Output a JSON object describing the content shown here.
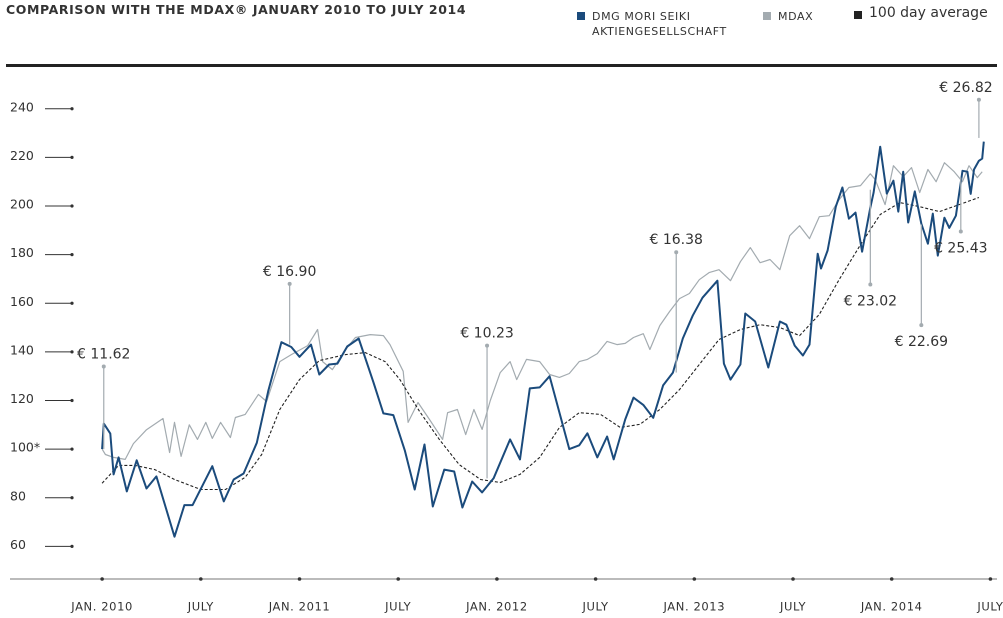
{
  "chart_data": {
    "type": "line",
    "title": "COMPARISON WITH THE MDAX® JANUARY 2010 TO JULY 2014",
    "xlim": [
      -5.6,
      54.4
    ],
    "xticks": [
      {
        "value": 0,
        "label": "JAN. 2010"
      },
      {
        "value": 6,
        "label": "JULY"
      },
      {
        "value": 12,
        "label": "JAN. 2011"
      },
      {
        "value": 18,
        "label": "JULY"
      },
      {
        "value": 24,
        "label": "JAN. 2012"
      },
      {
        "value": 30,
        "label": "JULY"
      },
      {
        "value": 36,
        "label": "JAN. 2013"
      },
      {
        "value": 42,
        "label": "JULY"
      },
      {
        "value": 48,
        "label": "JAN. 2014"
      },
      {
        "value": 54,
        "label": "JULY"
      }
    ],
    "ylim": [
      47,
      258
    ],
    "yticks": [
      60,
      80,
      {
        "value": 100,
        "label": "100*"
      },
      120,
      140,
      160,
      180,
      200,
      220,
      240
    ],
    "series": [
      {
        "name": "DMG MORI SEIKI AKTIENGESELLSCHAFT",
        "color": "#1b4b7c",
        "dashed": false,
        "x": [
          0,
          0.1,
          0.5,
          0.7,
          1.0,
          1.5,
          2.1,
          2.7,
          3.3,
          4.4,
          5.0,
          5.5,
          6.7,
          7.4,
          8.0,
          8.6,
          9.4,
          10.1,
          10.9,
          11.5,
          12.0,
          12.7,
          13.2,
          13.8,
          14.3,
          14.9,
          15.6,
          16.5,
          17.1,
          17.7,
          18.4,
          19.0,
          19.6,
          20.1,
          20.8,
          21.4,
          21.9,
          22.5,
          23.1,
          23.8,
          24.8,
          25.4,
          26.0,
          26.6,
          27.2,
          28.4,
          29.0,
          29.5,
          30.1,
          30.7,
          31.1,
          31.8,
          32.3,
          32.9,
          33.5,
          34.1,
          34.7,
          35.3,
          35.9,
          36.5,
          37.4,
          37.8,
          38.2,
          38.8,
          39.1,
          39.7,
          40.5,
          41.2,
          41.6,
          42.1,
          42.6,
          43.0,
          43.5,
          43.7,
          44.1,
          44.6,
          45.0,
          45.4,
          45.8,
          46.2,
          46.7,
          46.9,
          47.3,
          47.7,
          48.1,
          48.4,
          48.7,
          49.0,
          49.4,
          49.8,
          50.2,
          50.5,
          50.8,
          51.2,
          51.5,
          51.9,
          52.3,
          52.6,
          52.8,
          53.0,
          53.3,
          53.5,
          53.6
        ],
        "values": [
          100,
          110.5,
          106.4,
          89.6,
          96.6,
          82.6,
          95.4,
          83.8,
          88.8,
          64,
          77,
          77,
          93,
          78.5,
          87.5,
          90,
          102.6,
          124,
          144,
          142,
          138,
          143,
          130.7,
          134.8,
          135.2,
          142.2,
          145.5,
          127.4,
          114.7,
          114,
          99.5,
          83.4,
          101.9,
          76.4,
          91.6,
          90.8,
          76,
          86.7,
          82.2,
          88,
          104,
          95.8,
          125,
          125.4,
          130,
          100,
          101.6,
          106.5,
          96.6,
          105.2,
          95.8,
          112.2,
          121.2,
          118.2,
          112.9,
          126.2,
          131.5,
          145.5,
          154.9,
          162.3,
          169.3,
          135.2,
          128.6,
          134.8,
          155.8,
          152.5,
          133.6,
          152.5,
          151.2,
          142.6,
          138.5,
          143,
          180.4,
          174.3,
          181.7,
          199.7,
          207.6,
          194.8,
          197.3,
          181.2,
          199.3,
          205.5,
          224.4,
          205.1,
          210.4,
          197.7,
          214.1,
          193.2,
          206,
          192.8,
          184.5,
          196.9,
          179.6,
          195.2,
          191,
          196,
          214.5,
          214.1,
          205,
          215,
          218.6,
          219.5,
          226.5
        ]
      },
      {
        "name": "MDAX",
        "color": "#a3abb0",
        "dashed": false,
        "x": [
          0,
          0.2,
          0.7,
          1.4,
          1.9,
          2.7,
          3.7,
          4.1,
          4.4,
          4.8,
          5.3,
          5.8,
          6.3,
          6.7,
          7.2,
          7.8,
          8.1,
          8.7,
          9.5,
          10.0,
          10.8,
          11.5,
          12.5,
          13.1,
          13.4,
          14.0,
          14.8,
          15.4,
          16.3,
          17.1,
          17.5,
          18.3,
          18.6,
          19.2,
          19.9,
          20.7,
          21.0,
          21.6,
          22.1,
          22.6,
          23.1,
          23.6,
          24.2,
          24.8,
          25.2,
          25.8,
          26.6,
          27.2,
          27.8,
          28.4,
          29.0,
          29.5,
          30.1,
          30.7,
          31.3,
          31.8,
          32.3,
          32.9,
          33.3,
          33.9,
          34.5,
          35.1,
          35.7,
          36.3,
          36.9,
          37.5,
          38.2,
          38.8,
          39.4,
          40.0,
          40.6,
          41.2,
          41.8,
          42.4,
          43.0,
          43.6,
          44.2,
          44.8,
          45.4,
          46.1,
          46.7,
          47.0,
          47.6,
          48.1,
          48.7,
          49.2,
          49.7,
          50.2,
          50.7,
          51.2,
          51.8,
          52.3,
          52.7,
          53.2,
          53.5
        ],
        "values": [
          100,
          97.8,
          96.6,
          95.8,
          102.3,
          108,
          112.6,
          98.6,
          111,
          97,
          110,
          104,
          111,
          104.4,
          111,
          104.8,
          113,
          114.3,
          122.5,
          119.6,
          136,
          138.9,
          142.6,
          149.2,
          136,
          132.7,
          141,
          145.9,
          147.1,
          146.7,
          143,
          132,
          111,
          119.2,
          112.2,
          104,
          115,
          116.3,
          106,
          116.3,
          108.1,
          120,
          131.5,
          136,
          128.6,
          136.9,
          136,
          130.7,
          129.5,
          131.1,
          136,
          136.9,
          139.3,
          144.3,
          143,
          143.5,
          145.9,
          147.5,
          141,
          150.8,
          156.6,
          161.9,
          164,
          169.7,
          172.6,
          173.8,
          169.3,
          177.1,
          182.9,
          176.7,
          178,
          173.8,
          187.8,
          191.9,
          186.6,
          195.6,
          196,
          202.6,
          207.6,
          208.4,
          213.3,
          210.8,
          200.6,
          216.6,
          212.1,
          215.8,
          205.5,
          215,
          210,
          217.8,
          214.1,
          210,
          216.6,
          211.7,
          214.1
        ]
      },
      {
        "name": "100 day average",
        "color": "#222222",
        "dashed": true,
        "x": [
          0,
          1.0,
          2.0,
          3.2,
          4.4,
          6.0,
          7.5,
          8.7,
          9.7,
          10.8,
          12.0,
          13.2,
          14.8,
          16.0,
          17.2,
          18.1,
          19.3,
          20.5,
          21.7,
          23.0,
          24.2,
          25.4,
          26.6,
          27.8,
          29.0,
          30.3,
          31.5,
          32.7,
          33.9,
          35.1,
          36.3,
          37.5,
          38.8,
          40.0,
          41.2,
          42.4,
          43.6,
          44.8,
          46.1,
          47.3,
          48.5,
          49.7,
          50.9,
          52.1,
          53.3
        ],
        "values": [
          86,
          93.3,
          93.3,
          91.6,
          87.5,
          83.4,
          83.4,
          88.4,
          97.8,
          116.3,
          128.6,
          136.4,
          138.9,
          139.7,
          136,
          128.6,
          115.5,
          104,
          93.7,
          87.5,
          86.3,
          89.6,
          96.6,
          108.9,
          115,
          114.3,
          108.9,
          110.2,
          116.3,
          124.5,
          134.8,
          145.1,
          149.2,
          151.2,
          150,
          146.7,
          155.4,
          169.7,
          184.1,
          196.5,
          201.4,
          199.7,
          197.7,
          200.6,
          203.5
        ]
      }
    ],
    "annotations": [
      {
        "text": "€ 11.62",
        "x": 0.1,
        "y": 100,
        "label_y": 134,
        "position": "above"
      },
      {
        "text": "€ 16.90",
        "x": 11.4,
        "y": 143,
        "label_y": 168,
        "position": "above"
      },
      {
        "text": "€ 10.23",
        "x": 23.4,
        "y": 88,
        "label_y": 142.6,
        "position": "above"
      },
      {
        "text": "€ 16.38",
        "x": 34.9,
        "y": 131.5,
        "label_y": 181,
        "position": "above"
      },
      {
        "text": "€ 23.02",
        "x": 46.7,
        "y": 206.7,
        "label_y": 167.7,
        "position": "below"
      },
      {
        "text": "€ 22.69",
        "x": 49.8,
        "y": 192.4,
        "label_y": 151,
        "position": "below"
      },
      {
        "text": "€ 25.43",
        "x": 52.2,
        "y": 211.7,
        "label_y": 189.5,
        "position": "below"
      },
      {
        "text": "€ 26.82",
        "x": 53.3,
        "y": 228,
        "label_y": 243.7,
        "position": "above"
      }
    ]
  }
}
